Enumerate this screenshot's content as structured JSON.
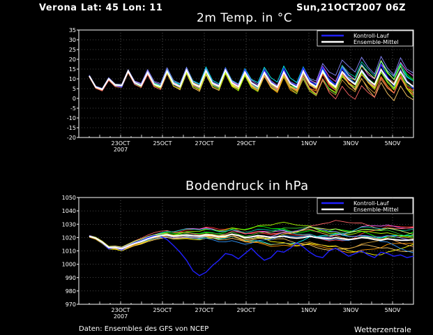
{
  "header": {
    "location": "Verona",
    "coords": "Lat: 45 Lon: 11",
    "run": "Sun,21OCT2007 06Z"
  },
  "footer": {
    "source": "Daten: Ensembles des GFS von NCEP",
    "brand": "Wetterzentrale"
  },
  "colors": {
    "control": "#2020ff",
    "mean": "#ffffff",
    "members": [
      "#ff3030",
      "#ff9900",
      "#ffff00",
      "#00ff00",
      "#00ffff",
      "#ff66ff",
      "#ffcc66",
      "#33cc33",
      "#3399ff",
      "#cc9933",
      "#ff6666",
      "#aaff00",
      "#00ccaa",
      "#ffaa55",
      "#8888ff",
      "#ddff66"
    ]
  },
  "chart_data": [
    {
      "type": "line",
      "title": "2m Temp. in °C",
      "ylim": [
        -20,
        35
      ],
      "yticks": [
        35,
        30,
        25,
        20,
        15,
        10,
        5,
        0,
        -5,
        -10,
        -15,
        -20
      ],
      "xlim": [
        0,
        16
      ],
      "xticks": [
        {
          "x": 2,
          "label": "23OCT",
          "sub": "2007"
        },
        {
          "x": 4,
          "label": "25OCT",
          "sub": ""
        },
        {
          "x": 6,
          "label": "27OCT",
          "sub": ""
        },
        {
          "x": 8,
          "label": "29OCT",
          "sub": ""
        },
        {
          "x": 11,
          "label": "1NOV",
          "sub": ""
        },
        {
          "x": 13,
          "label": "3NOV",
          "sub": ""
        },
        {
          "x": 15,
          "label": "5NOV",
          "sub": ""
        }
      ],
      "grid": true,
      "legend": {
        "position": "top-right",
        "entries": [
          {
            "name": "Kontroll-Lauf",
            "role": "control"
          },
          {
            "name": "Ensemble-Mittel",
            "role": "mean"
          }
        ]
      },
      "series": [
        {
          "name": "Kontroll-Lauf",
          "role": "control",
          "values": [
            11.8,
            6,
            4.5,
            10.3,
            6.6,
            5.8,
            14,
            7.7,
            6.5,
            13.5,
            7,
            6.2,
            14.5,
            7.2,
            5.8,
            15,
            7.3,
            6,
            14.8,
            8,
            6.2,
            15.3,
            8.1,
            5.9,
            14.7,
            8.3,
            6.3,
            14.5,
            8.5,
            6,
            15.2,
            8,
            6.4,
            15.6,
            8.7,
            6.8,
            16,
            9.3,
            7,
            15.5,
            10,
            7.1,
            14.6,
            10.2,
            6.7,
            17.3,
            11,
            6.5,
            14.5,
            9,
            5
          ]
        },
        {
          "name": "Ensemble-Mittel",
          "role": "mean",
          "values": [
            11.5,
            5.8,
            4.6,
            10,
            6.8,
            6.5,
            14,
            8,
            6.5,
            13.3,
            7.2,
            6,
            14,
            7.5,
            6,
            14.5,
            7.5,
            6,
            14.2,
            7.8,
            6.2,
            14.5,
            8,
            6,
            13.5,
            8,
            6,
            13.3,
            8,
            5.8,
            13.5,
            7.6,
            5.8,
            13.8,
            8,
            6,
            14,
            8.5,
            6,
            13.6,
            9.6,
            7.2,
            14.2,
            9.8,
            7,
            14.8,
            10,
            7,
            13.8,
            8.4,
            6
          ]
        }
      ],
      "members": {
        "count": 16,
        "spread": [
          0.4,
          0.6,
          0.6,
          0.9,
          1.1,
          1.3,
          1.4,
          1.5,
          1.8,
          2.1,
          2.6,
          3.2,
          3.8,
          4.4,
          4.8,
          5.2,
          5.5
        ]
      }
    },
    {
      "type": "line",
      "title": "Bodendruck in hPa",
      "ylim": [
        970,
        1050
      ],
      "yticks": [
        1050,
        1040,
        1030,
        1020,
        1010,
        1000,
        990,
        980,
        970
      ],
      "xlim": [
        0,
        16
      ],
      "xticks": [
        {
          "x": 2,
          "label": "23OCT",
          "sub": "2007"
        },
        {
          "x": 4,
          "label": "25OCT",
          "sub": ""
        },
        {
          "x": 6,
          "label": "27OCT",
          "sub": ""
        },
        {
          "x": 8,
          "label": "29OCT",
          "sub": ""
        },
        {
          "x": 11,
          "label": "1NOV",
          "sub": ""
        },
        {
          "x": 13,
          "label": "3NOV",
          "sub": ""
        },
        {
          "x": 15,
          "label": "5NOV",
          "sub": ""
        }
      ],
      "grid": true,
      "legend": {
        "position": "top-right",
        "entries": [
          {
            "name": "Kontroll-Lauf",
            "role": "control"
          },
          {
            "name": "Ensemble-Mittel",
            "role": "mean"
          }
        ]
      },
      "series": [
        {
          "name": "Kontroll-Lauf",
          "role": "control",
          "values": [
            1021.5,
            1019.5,
            1016,
            1011.5,
            1012.5,
            1010.5,
            1013.5,
            1016,
            1017.5,
            1020,
            1021.5,
            1021,
            1018.5,
            1014,
            1009,
            1003,
            995,
            991.5,
            994,
            999,
            1003,
            1008,
            1007,
            1004,
            1008,
            1012,
            1007,
            1003,
            1005,
            1010,
            1009,
            1012,
            1016,
            1013,
            1009,
            1006,
            1005,
            1010,
            1012,
            1009,
            1006,
            1008,
            1010,
            1007,
            1005,
            1009,
            1008,
            1006,
            1007,
            1005,
            1006
          ]
        },
        {
          "name": "Ensemble-Mittel",
          "role": "mean",
          "values": [
            1021,
            1019.5,
            1016.5,
            1012.5,
            1012.5,
            1011.5,
            1013.5,
            1015.5,
            1017,
            1019,
            1020.5,
            1021.5,
            1022,
            1021,
            1021.5,
            1022,
            1021.5,
            1021,
            1022,
            1021.5,
            1020.5,
            1021,
            1022.5,
            1021.5,
            1020,
            1020.5,
            1021.5,
            1021,
            1020,
            1020.5,
            1021,
            1020,
            1019.5,
            1020,
            1021,
            1020,
            1019.5,
            1019,
            1020,
            1019,
            1018.5,
            1019,
            1020,
            1019.5,
            1018.5,
            1018,
            1019,
            1018.5,
            1018,
            1018,
            1018.5
          ]
        }
      ],
      "members": {
        "count": 16,
        "spread": [
          0.5,
          0.8,
          1.2,
          1.8,
          2.5,
          3.2,
          3.8,
          4.4,
          5.0,
          5.5,
          6.0,
          6.5,
          7.0,
          7.5,
          8.0,
          8.5,
          9.0
        ]
      }
    }
  ]
}
